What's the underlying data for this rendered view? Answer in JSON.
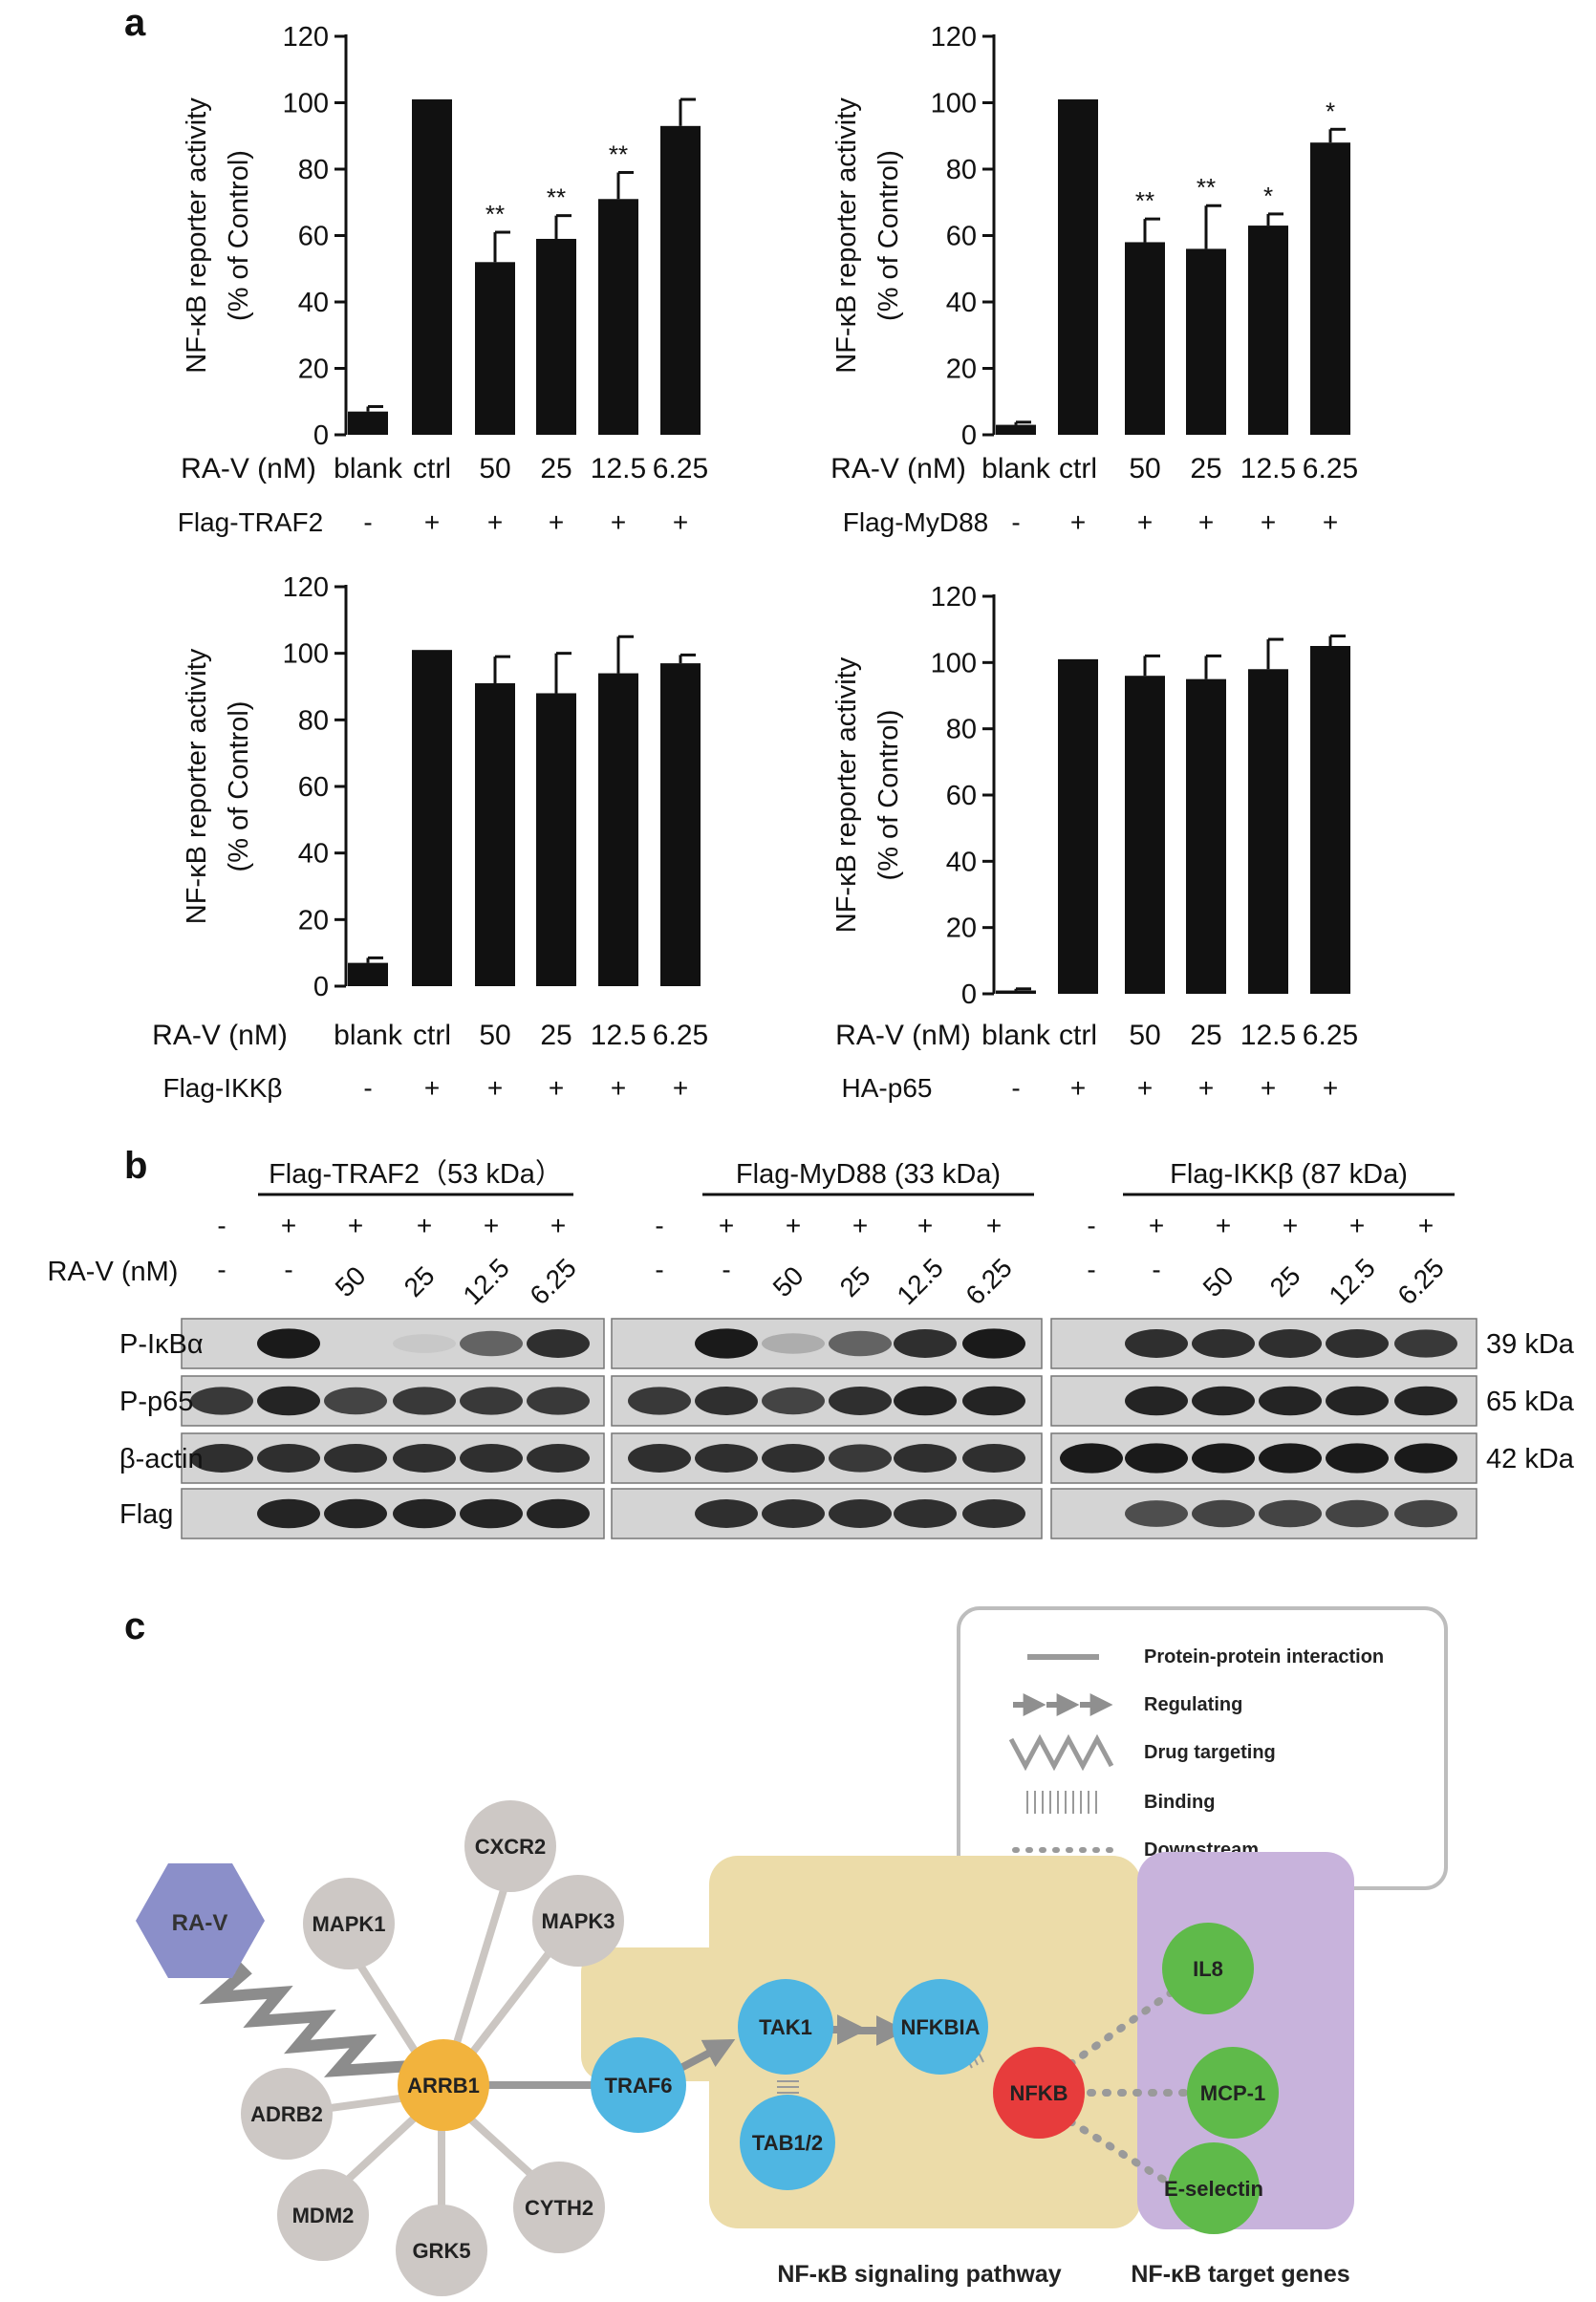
{
  "panels": {
    "a": {
      "letter": "a",
      "chart_data": [
        {
          "type": "bar",
          "ylabel": [
            "NF-κB reporter activity",
            "(% of Control)"
          ],
          "ylim": [
            0,
            120
          ],
          "yticks": [
            0,
            20,
            40,
            60,
            80,
            100,
            120
          ],
          "row1_label": "RA-V (nM)",
          "categories": [
            "blank",
            "ctrl",
            "50",
            "25",
            "12.5",
            "6.25"
          ],
          "row2_label": "Flag-TRAF2",
          "row2_values": [
            "-",
            "+",
            "+",
            "+",
            "+",
            "+"
          ],
          "values": [
            7,
            101,
            52,
            59,
            71,
            93
          ],
          "errors": [
            1.5,
            0,
            9,
            7,
            8,
            8
          ],
          "significance": [
            "",
            "",
            "**",
            "**",
            "**",
            ""
          ]
        },
        {
          "type": "bar",
          "ylabel": [
            "NF-κB reporter activity",
            "(% of Control)"
          ],
          "ylim": [
            0,
            120
          ],
          "yticks": [
            0,
            20,
            40,
            60,
            80,
            100,
            120
          ],
          "row1_label": "RA-V (nM)",
          "categories": [
            "blank",
            "ctrl",
            "50",
            "25",
            "12.5",
            "6.25"
          ],
          "row2_label": "Flag-MyD88",
          "row2_values": [
            "-",
            "+",
            "+",
            "+",
            "+",
            "+"
          ],
          "values": [
            3,
            101,
            58,
            56,
            63,
            88
          ],
          "errors": [
            0.8,
            0,
            7,
            13,
            3.5,
            4
          ],
          "significance": [
            "",
            "",
            "**",
            "**",
            "*",
            "*"
          ]
        },
        {
          "type": "bar",
          "ylabel": [
            "NF-κB reporter activity",
            "(% of Control)"
          ],
          "ylim": [
            0,
            120
          ],
          "yticks": [
            0,
            20,
            40,
            60,
            80,
            100,
            120
          ],
          "row1_label": "RA-V (nM)",
          "categories": [
            "blank",
            "ctrl",
            "50",
            "25",
            "12.5",
            "6.25"
          ],
          "row2_label": "Flag-IKKβ",
          "row2_values": [
            "-",
            "+",
            "+",
            "+",
            "+",
            "+"
          ],
          "values": [
            7,
            101,
            91,
            88,
            94,
            97
          ],
          "errors": [
            1.5,
            0,
            8,
            12,
            11,
            2.5
          ],
          "significance": [
            "",
            "",
            "",
            "",
            "",
            ""
          ]
        },
        {
          "type": "bar",
          "ylabel": [
            "NF-κB reporter activity",
            "(% of Control)"
          ],
          "ylim": [
            0,
            120
          ],
          "yticks": [
            0,
            20,
            40,
            60,
            80,
            100,
            120
          ],
          "row1_label": "RA-V (nM)",
          "categories": [
            "blank",
            "ctrl",
            "50",
            "25",
            "12.5",
            "6.25"
          ],
          "row2_label": "HA-p65",
          "row2_values": [
            "-",
            "+",
            "+",
            "+",
            "+",
            "+"
          ],
          "values": [
            1,
            101,
            96,
            95,
            98,
            105
          ],
          "errors": [
            0.5,
            0,
            6,
            7,
            9,
            3
          ],
          "significance": [
            "",
            "",
            "",
            "",
            "",
            ""
          ]
        }
      ]
    },
    "b": {
      "letter": "b",
      "ra_label": "RA-V (nM)",
      "groups": [
        {
          "title": "Flag-TRAF2（53 kDa）",
          "plus": [
            "-",
            "+",
            "+",
            "+",
            "+",
            "+"
          ],
          "doses": [
            "-",
            "-",
            "50",
            "25",
            "12.5",
            "6.25"
          ]
        },
        {
          "title": "Flag-MyD88 (33 kDa)",
          "plus": [
            "-",
            "+",
            "+",
            "+",
            "+",
            "+"
          ],
          "doses": [
            "-",
            "-",
            "50",
            "25",
            "12.5",
            "6.25"
          ]
        },
        {
          "title": "Flag-IKKβ (87 kDa)",
          "plus": [
            "-",
            "+",
            "+",
            "+",
            "+",
            "+"
          ],
          "doses": [
            "-",
            "-",
            "50",
            "25",
            "12.5",
            "6.25"
          ]
        }
      ],
      "rows": [
        {
          "label": "P-IκBα",
          "kda": "39 kDa",
          "intensity": [
            [
              0,
              0.95,
              0,
              0.12,
              0.6,
              0.85
            ],
            [
              0,
              0.95,
              0.25,
              0.6,
              0.85,
              0.95
            ],
            [
              0,
              0.85,
              0.85,
              0.85,
              0.85,
              0.8
            ]
          ]
        },
        {
          "label": "P-p65",
          "kda": "65 kDa",
          "intensity": [
            [
              0.8,
              0.9,
              0.75,
              0.8,
              0.8,
              0.8
            ],
            [
              0.8,
              0.85,
              0.75,
              0.85,
              0.9,
              0.9
            ],
            [
              0,
              0.9,
              0.9,
              0.9,
              0.9,
              0.9
            ]
          ]
        },
        {
          "label": "β-actin",
          "kda": "42 kDa",
          "intensity": [
            [
              0.85,
              0.85,
              0.85,
              0.85,
              0.85,
              0.85
            ],
            [
              0.85,
              0.85,
              0.85,
              0.8,
              0.85,
              0.85
            ],
            [
              0.95,
              0.95,
              0.95,
              0.95,
              0.95,
              0.95
            ]
          ]
        },
        {
          "label": "Flag",
          "kda": "",
          "intensity": [
            [
              0,
              0.9,
              0.9,
              0.9,
              0.9,
              0.9
            ],
            [
              0,
              0.85,
              0.85,
              0.85,
              0.85,
              0.85
            ],
            [
              0,
              0.7,
              0.75,
              0.75,
              0.75,
              0.75
            ]
          ]
        }
      ]
    },
    "c": {
      "letter": "c",
      "legend": [
        "Protein-protein interaction",
        "Regulating",
        "Drug targeting",
        "Binding",
        "Downstream"
      ],
      "drug": "RA-V",
      "hub": "ARRB1",
      "neighbors": [
        "MAPK1",
        "CXCR2",
        "MAPK3",
        "ADRB2",
        "MDM2",
        "GRK5",
        "CYTH2"
      ],
      "pathway_nodes": [
        "TRAF6",
        "TAK1",
        "TAB1/2",
        "NFKBIA"
      ],
      "nfkb": "NFKB",
      "targets": [
        "IL8",
        "MCP-1",
        "E-selectin"
      ],
      "pathway_caption": "NF-κB signaling pathway",
      "targets_caption": "NF-κB target genes",
      "colors": {
        "drug": "#8b8fc9",
        "neighbor": "#cdc8c5",
        "hub": "#f2b33d",
        "pathway_node": "#4fb6e2",
        "nfkb": "#e73c3c",
        "target": "#5fba4a",
        "pathway_bg": "#ecdca9",
        "targets_bg": "#c8b3dc",
        "edge": "#cbc6c2",
        "arrow": "#8f8f8f"
      }
    }
  }
}
